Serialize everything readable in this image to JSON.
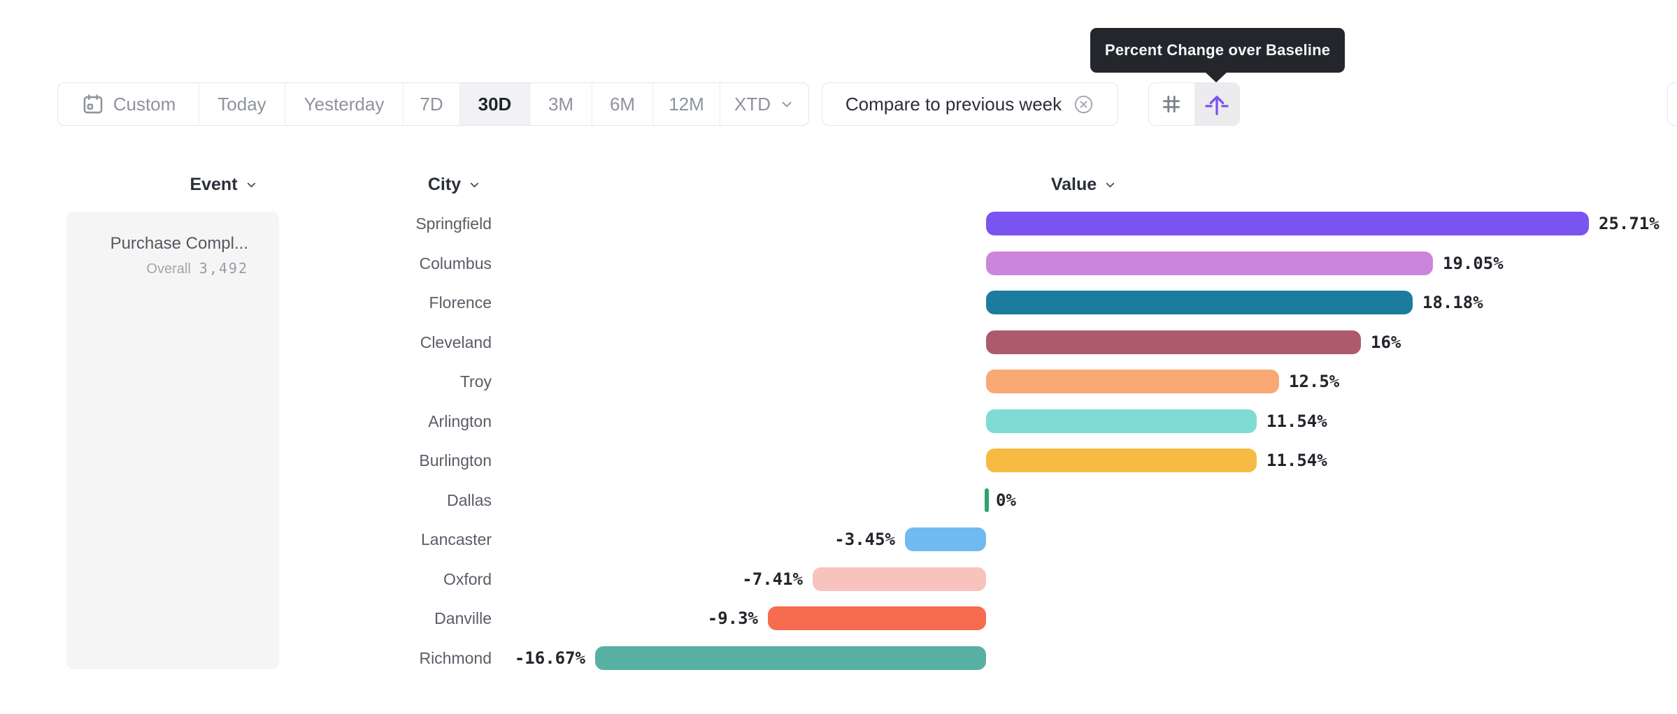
{
  "tooltip": {
    "text": "Percent Change over Baseline"
  },
  "toolbar": {
    "date_ranges": [
      {
        "label": "Custom",
        "icon": "calendar-icon"
      },
      {
        "label": "Today"
      },
      {
        "label": "Yesterday"
      },
      {
        "label": "7D"
      },
      {
        "label": "30D",
        "selected": true
      },
      {
        "label": "3M"
      },
      {
        "label": "6M"
      },
      {
        "label": "12M"
      },
      {
        "label": "XTD",
        "chevron": "chevron-down-icon"
      }
    ],
    "selected_range": "30D",
    "compare": {
      "label": "Compare to previous week",
      "clear_icon": "x-circle-icon"
    },
    "view_toggle": {
      "buttons": [
        {
          "icon": "grid-icon",
          "active": false
        },
        {
          "icon": "arrow-up-from-baseline-icon",
          "active": true
        }
      ]
    }
  },
  "columns": {
    "event": "Event",
    "city": "City",
    "value": "Value",
    "sort_icon": "chevron-down-icon"
  },
  "event_card": {
    "name": "Purchase Compl...",
    "overall_label": "Overall",
    "overall_value": "3,492"
  },
  "chart_data": {
    "type": "bar",
    "orientation": "horizontal",
    "title": "Percent Change over Baseline",
    "xlabel": "Value",
    "value_format": "percent",
    "baseline": 0,
    "xlim": [
      -20,
      29
    ],
    "grid": false,
    "categories": [
      "Springfield",
      "Columbus",
      "Florence",
      "Cleveland",
      "Troy",
      "Arlington",
      "Burlington",
      "Dallas",
      "Lancaster",
      "Oxford",
      "Danville",
      "Richmond"
    ],
    "values": [
      25.71,
      19.05,
      18.18,
      16,
      12.5,
      11.54,
      11.54,
      0,
      -3.45,
      -7.41,
      -9.3,
      -16.67
    ],
    "labels": [
      "25.71%",
      "19.05%",
      "18.18%",
      "16%",
      "12.5%",
      "11.54%",
      "11.54%",
      "0%",
      "-3.45%",
      "-7.41%",
      "-9.3%",
      "-16.67%"
    ],
    "colors": [
      "#7a54f0",
      "#cb85dc",
      "#1b7c9d",
      "#af5a6b",
      "#f9a873",
      "#7fdcd4",
      "#f6bb42",
      "#2ea36b",
      "#70baf1",
      "#f9c3bd",
      "#f76c4e",
      "#58b0a3"
    ]
  },
  "colors": {
    "accent": "#7a54f0",
    "tooltip_bg": "#25262c",
    "border": "#e4e5e9",
    "selected_segment_bg": "#f2f2f4",
    "muted_text": "#8e939b",
    "dark_text": "#22252b",
    "card_bg": "#f5f5f6"
  }
}
